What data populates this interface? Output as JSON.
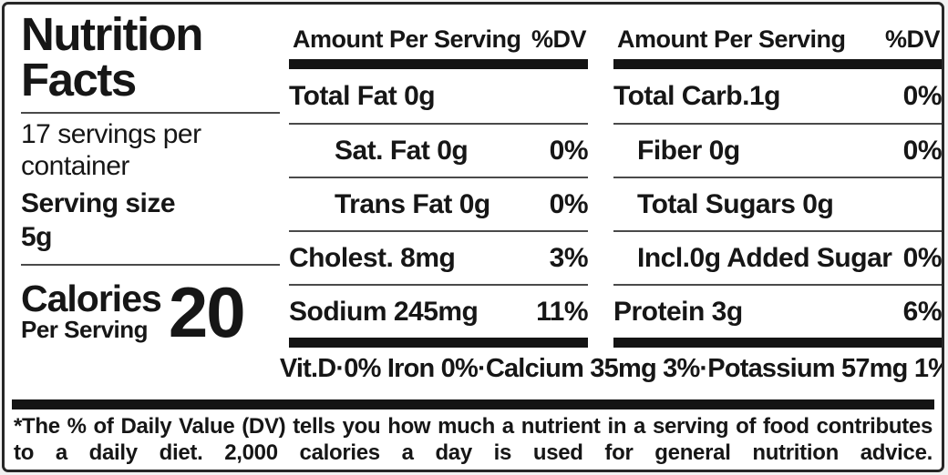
{
  "meta": {
    "background": "#ffffff",
    "ink": "#141414"
  },
  "left": {
    "title": "Nutrition Facts",
    "servings_per_container": "17 servings per container",
    "serving_size_label": "Serving size",
    "serving_size_value": "5g",
    "calories_label": "Calories",
    "calories_subtitle": "Per Serving",
    "calories_value": "20"
  },
  "columns": [
    {
      "header": "Amount Per Serving",
      "dv_header": "%DV",
      "rows": [
        {
          "name": "Total Fat 0g",
          "dv": ""
        },
        {
          "name": "Sat. Fat 0g",
          "dv": "0%"
        },
        {
          "name": "Trans Fat 0g",
          "dv": "0%"
        },
        {
          "name": "Cholest. 8mg",
          "dv": "3%"
        },
        {
          "name": "Sodium 245mg",
          "dv": "11%"
        }
      ]
    },
    {
      "header": "Amount Per Serving",
      "dv_header": "%DV",
      "rows": [
        {
          "name": "Total Carb.1g",
          "dv": "0%"
        },
        {
          "name": "Fiber 0g",
          "dv": "0%"
        },
        {
          "name": "Total Sugars 0g",
          "dv": ""
        },
        {
          "name": "Incl.0g Added Sugar",
          "dv": "0%"
        },
        {
          "name": "Protein 3g",
          "dv": "6%"
        }
      ]
    }
  ],
  "micronutrients": "Vit.D·0% Iron 0%·Calcium 35mg 3%·Potassium 57mg 1%",
  "footnote": "*The % of Daily Value (DV) tells you how much a nutrient in a serving of food contributes to a daily diet. 2,000 calories a day is used for general nutrition advice."
}
